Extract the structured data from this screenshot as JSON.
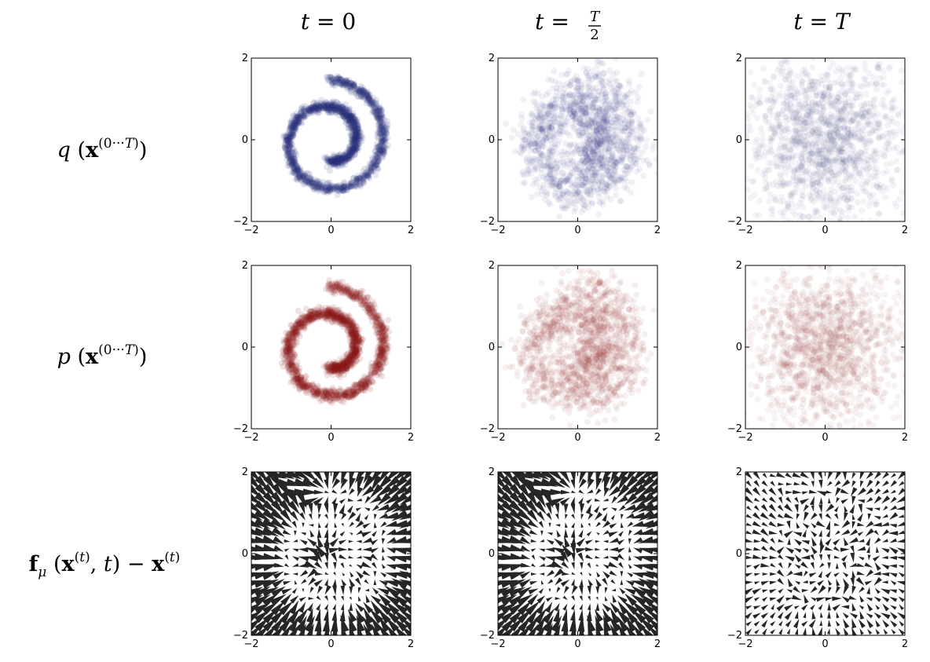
{
  "columns": [
    {
      "id": "t0",
      "label": "t = 0"
    },
    {
      "id": "tT2",
      "label": "t = T/2"
    },
    {
      "id": "tT",
      "label": "t = T"
    }
  ],
  "rows": [
    {
      "id": "q",
      "label": "q (x^(0···T))"
    },
    {
      "id": "p",
      "label": "p (x^(0···T))"
    },
    {
      "id": "drift",
      "label": "f_μ (x^(t), t) − x^(t)"
    }
  ],
  "colors": {
    "forward_points": "#2b2f7a",
    "reverse_points": "#8b1a1a",
    "arrows": "#262626",
    "axes": "#000000"
  },
  "chart_data": [
    {
      "type": "scatter",
      "row": "q",
      "column": "t0",
      "xlim": [
        -2,
        2
      ],
      "ylim": [
        -2,
        2
      ],
      "xticks": [
        "−2",
        "0",
        "2"
      ],
      "yticks": [
        "−2",
        "0",
        "2"
      ],
      "distribution": "swiss-roll spiral",
      "noise": 0.06,
      "opacity": 0.12,
      "points": 1800,
      "color": "#2b2f7a"
    },
    {
      "type": "scatter",
      "row": "q",
      "column": "tT2",
      "xlim": [
        -2,
        2
      ],
      "ylim": [
        -2,
        2
      ],
      "xticks": [
        "−2",
        "0",
        "2"
      ],
      "yticks": [
        "−2",
        "0",
        "2"
      ],
      "distribution": "diffused spiral",
      "noise": 0.28,
      "opacity": 0.07,
      "points": 1500,
      "color": "#2b2f7a"
    },
    {
      "type": "scatter",
      "row": "q",
      "column": "tT",
      "xlim": [
        -2,
        2
      ],
      "ylim": [
        -2,
        2
      ],
      "xticks": [
        "−2",
        "0",
        "2"
      ],
      "yticks": [
        "−2",
        "0",
        "2"
      ],
      "distribution": "gaussian",
      "std": 1.0,
      "opacity": 0.06,
      "points": 1500,
      "color": "#2b2f7a"
    },
    {
      "type": "scatter",
      "row": "p",
      "column": "t0",
      "xlim": [
        -2,
        2
      ],
      "ylim": [
        -2,
        2
      ],
      "xticks": [
        "−2",
        "0",
        "2"
      ],
      "yticks": [
        "−2",
        "0",
        "2"
      ],
      "distribution": "swiss-roll spiral",
      "noise": 0.07,
      "opacity": 0.12,
      "points": 1800,
      "color": "#8b1a1a"
    },
    {
      "type": "scatter",
      "row": "p",
      "column": "tT2",
      "xlim": [
        -2,
        2
      ],
      "ylim": [
        -2,
        2
      ],
      "xticks": [
        "−2",
        "0",
        "2"
      ],
      "yticks": [
        "−2",
        "0",
        "2"
      ],
      "distribution": "diffused spiral",
      "noise": 0.3,
      "opacity": 0.07,
      "points": 1500,
      "color": "#8b1a1a"
    },
    {
      "type": "scatter",
      "row": "p",
      "column": "tT",
      "xlim": [
        -2,
        2
      ],
      "ylim": [
        -2,
        2
      ],
      "xticks": [
        "−2",
        "0",
        "2"
      ],
      "yticks": [
        "−2",
        "0",
        "2"
      ],
      "distribution": "gaussian",
      "std": 0.95,
      "opacity": 0.06,
      "points": 1500,
      "color": "#8b1a1a"
    },
    {
      "type": "quiver",
      "row": "drift",
      "column": "t0",
      "xlim": [
        -2,
        2
      ],
      "ylim": [
        -2,
        2
      ],
      "xticks": [
        "−2",
        "0",
        "2"
      ],
      "yticks": [
        "−2",
        "0",
        "2"
      ],
      "grid": 20,
      "strength": 1.0,
      "color": "#262626"
    },
    {
      "type": "quiver",
      "row": "drift",
      "column": "tT2",
      "xlim": [
        -2,
        2
      ],
      "ylim": [
        -2,
        2
      ],
      "xticks": [
        "−2",
        "0",
        "2"
      ],
      "yticks": [
        "−2",
        "0",
        "2"
      ],
      "grid": 20,
      "strength": 0.95,
      "color": "#262626"
    },
    {
      "type": "quiver",
      "row": "drift",
      "column": "tT",
      "xlim": [
        -2,
        2
      ],
      "ylim": [
        -2,
        2
      ],
      "xticks": [
        "−2",
        "0",
        "2"
      ],
      "yticks": [
        "−2",
        "0",
        "2"
      ],
      "grid": 20,
      "strength": 0.35,
      "color": "#262626"
    }
  ]
}
